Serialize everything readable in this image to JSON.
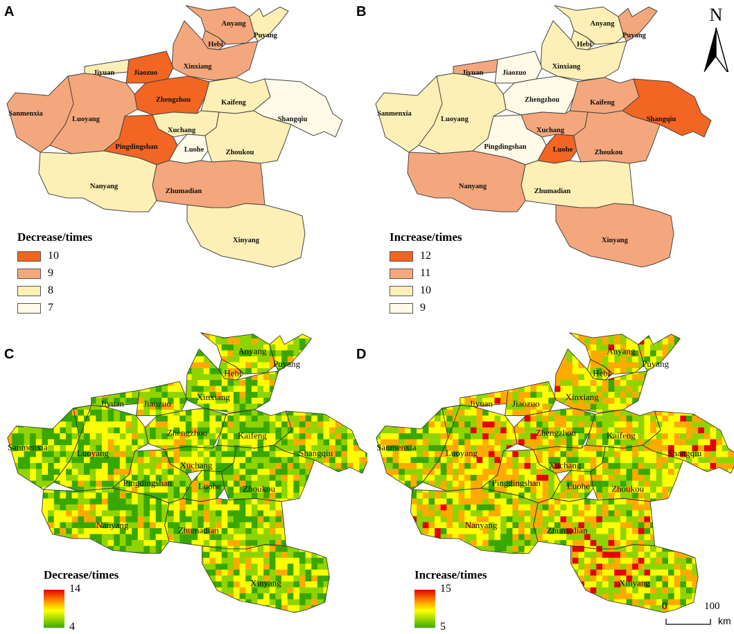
{
  "panels": {
    "A": {
      "letter": "A",
      "legend_title": "Decrease/times",
      "classes": [
        {
          "label": "10",
          "color": "#f26522"
        },
        {
          "label": "9",
          "color": "#f4a77c"
        },
        {
          "label": "8",
          "color": "#fdf0b6"
        },
        {
          "label": "7",
          "color": "#fffbe8"
        }
      ]
    },
    "B": {
      "letter": "B",
      "legend_title": "Increase/times",
      "classes": [
        {
          "label": "12",
          "color": "#f26522"
        },
        {
          "label": "11",
          "color": "#f4a77c"
        },
        {
          "label": "10",
          "color": "#fdf0b6"
        },
        {
          "label": "9",
          "color": "#fffbe8"
        }
      ]
    },
    "C": {
      "letter": "C",
      "legend_title": "Decrease/times",
      "ramp_max": "14",
      "ramp_min": "4"
    },
    "D": {
      "letter": "D",
      "legend_title": "Increase/times",
      "ramp_max": "15",
      "ramp_min": "5"
    }
  },
  "cities": [
    "Anyang",
    "Puyang",
    "Hebi",
    "Xinxiang",
    "Jiyuan",
    "Jiaozuo",
    "Zhengzhou",
    "Kaifeng",
    "Sanmenxia",
    "Luoyang",
    "Shangqiu",
    "Xuchang",
    "Pingdingshan",
    "Luohe",
    "Zhoukou",
    "Nanyang",
    "Zhumadian",
    "Xinyang"
  ],
  "decrease_class": {
    "Anyang": "9",
    "Puyang": "8",
    "Hebi": "9",
    "Xinxiang": "9",
    "Jiyuan": "8",
    "Jiaozuo": "10",
    "Zhengzhou": "10",
    "Kaifeng": "8",
    "Sanmenxia": "9",
    "Luoyang": "9",
    "Shangqiu": "7",
    "Xuchang": "8",
    "Pingdingshan": "10",
    "Luohe": "7",
    "Zhoukou": "8",
    "Nanyang": "8",
    "Zhumadian": "9",
    "Xinyang": "8"
  },
  "increase_class": {
    "Anyang": "10",
    "Puyang": "11",
    "Hebi": "10",
    "Xinxiang": "10",
    "Jiyuan": "11",
    "Jiaozuo": "9",
    "Zhengzhou": "9",
    "Kaifeng": "11",
    "Sanmenxia": "10",
    "Luoyang": "10",
    "Shangqiu": "12",
    "Xuchang": "11",
    "Pingdingshan": "9",
    "Luohe": "12",
    "Zhoukou": "11",
    "Nanyang": "11",
    "Zhumadian": "10",
    "Xinyang": "11"
  },
  "north_arrow": {
    "label": "N"
  },
  "scale_bar": {
    "start": "0",
    "end": "100",
    "unit": "km"
  },
  "colors": {
    "raster_high": "#e60000",
    "raster_mid": "#ffff00",
    "raster_low": "#38a800",
    "boundary": "#444444"
  }
}
